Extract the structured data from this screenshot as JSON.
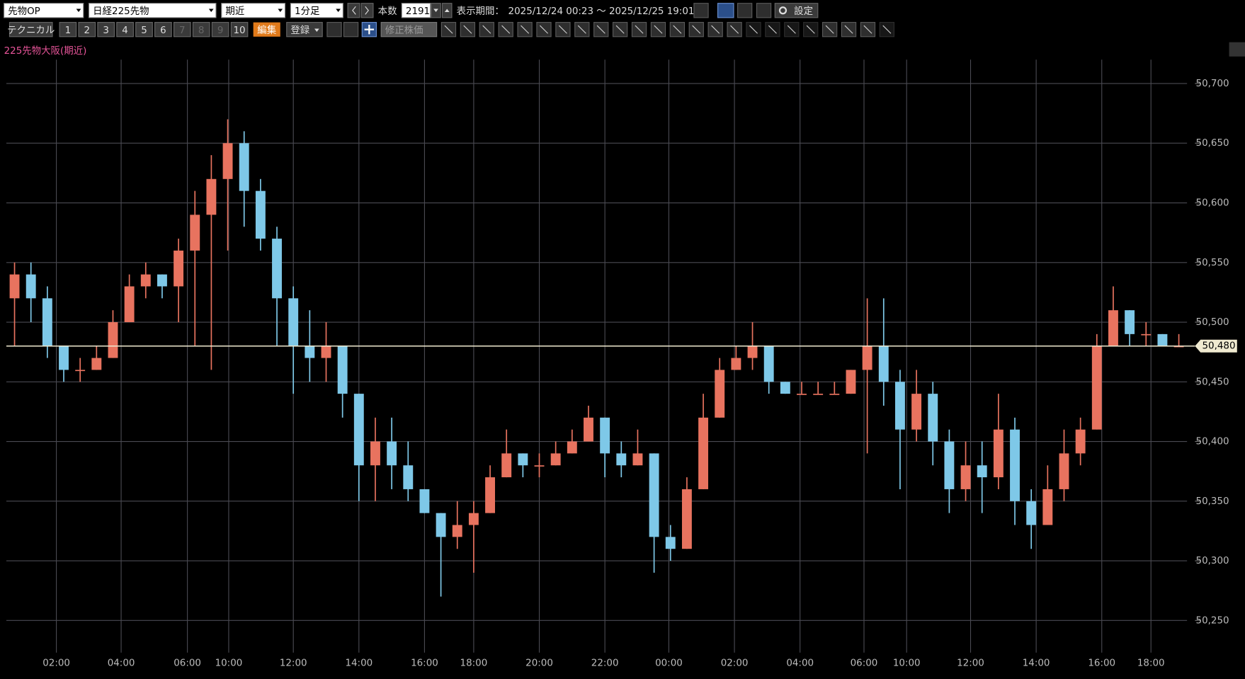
{
  "toolbar": {
    "market": "先物OP",
    "symbol": "日経225先物",
    "contract": "期近",
    "interval": "1分足",
    "bars_label": "本数",
    "bars": 2191,
    "period_label": "表示期間：",
    "period": "2025/12/24 00:23 ～ 2025/12/25 19:01",
    "settings": "設定",
    "technical": "テクニカル",
    "presets": [
      1,
      2,
      3,
      4,
      5,
      6,
      7,
      8,
      9,
      10
    ],
    "edit": "編集",
    "register": "登録",
    "adjusted": "修正株価"
  },
  "chart_data": {
    "type": "candlestick",
    "title": "225先物大阪(期近)",
    "open": [
      50520,
      50540,
      50520,
      50480,
      50460,
      50460,
      50470,
      50500,
      50530,
      50540,
      50530,
      50560,
      50590,
      50620,
      50650,
      50610,
      50570,
      50520,
      50480,
      50470,
      50480,
      50440,
      50380,
      50400,
      50380,
      50360,
      50340,
      50320,
      50330,
      50340,
      50370,
      50390,
      50380,
      50380,
      50390,
      50400,
      50420,
      50390,
      50380,
      50390,
      50320,
      50310,
      50360,
      50420,
      50460,
      50470,
      50480,
      50450,
      50440,
      50440,
      50440,
      50440,
      50460,
      50480,
      50450,
      50410,
      50440,
      50400,
      50360,
      50380,
      50370,
      50410,
      50350,
      50330,
      50360,
      50390,
      50410,
      50480,
      50510,
      50490,
      50490,
      50480
    ],
    "high": [
      50550,
      50550,
      50530,
      50480,
      50470,
      50480,
      50510,
      50540,
      50550,
      50540,
      50570,
      50610,
      50640,
      50670,
      50660,
      50620,
      50580,
      50530,
      50510,
      50500,
      50480,
      50440,
      50420,
      50420,
      50400,
      50360,
      50340,
      50350,
      50350,
      50380,
      50410,
      50390,
      50390,
      50400,
      50410,
      50430,
      50420,
      50400,
      50410,
      50390,
      50330,
      50370,
      50440,
      50470,
      50480,
      50500,
      50480,
      50450,
      50450,
      50450,
      50450,
      50460,
      50520,
      50520,
      50460,
      50460,
      50450,
      50410,
      50400,
      50400,
      50440,
      50420,
      50360,
      50380,
      50410,
      50420,
      50490,
      50530,
      50510,
      50500,
      50490,
      50490
    ],
    "low": [
      50480,
      50500,
      50470,
      50450,
      50450,
      50460,
      50470,
      50500,
      50520,
      50520,
      50500,
      50480,
      50460,
      50560,
      50580,
      50560,
      50480,
      50440,
      50450,
      50450,
      50420,
      50350,
      50350,
      50360,
      50350,
      50340,
      50270,
      50310,
      50290,
      50340,
      50370,
      50370,
      50370,
      50380,
      50390,
      50400,
      50370,
      50370,
      50380,
      50290,
      50300,
      50310,
      50360,
      50420,
      50460,
      50460,
      50440,
      50440,
      50440,
      50440,
      50440,
      50440,
      50390,
      50430,
      50360,
      50400,
      50380,
      50340,
      50350,
      50340,
      50360,
      50330,
      50310,
      50330,
      50350,
      50380,
      50410,
      50480,
      50480,
      50480,
      50480,
      50480
    ],
    "close": [
      50540,
      50520,
      50480,
      50460,
      50460,
      50470,
      50500,
      50530,
      50540,
      50530,
      50560,
      50590,
      50620,
      50650,
      50610,
      50570,
      50520,
      50480,
      50470,
      50480,
      50440,
      50380,
      50400,
      50380,
      50360,
      50340,
      50320,
      50330,
      50340,
      50370,
      50390,
      50380,
      50380,
      50390,
      50400,
      50420,
      50390,
      50380,
      50390,
      50320,
      50310,
      50360,
      50420,
      50460,
      50470,
      50480,
      50450,
      50440,
      50440,
      50440,
      50440,
      50460,
      50480,
      50450,
      50410,
      50440,
      50400,
      50360,
      50380,
      50370,
      50410,
      50350,
      50330,
      50360,
      50390,
      50410,
      50480,
      50510,
      50490,
      50490,
      50480,
      50480
    ],
    "up_color": "#e8735f",
    "down_color": "#7ec8e8",
    "title_color": "#e8559a",
    "ylim": [
      50223,
      50720
    ],
    "yticks": [
      {
        "value": 50250,
        "label": "50,250"
      },
      {
        "value": 50300,
        "label": "50,300"
      },
      {
        "value": 50350,
        "label": "50,350"
      },
      {
        "value": 50400,
        "label": "50,400"
      },
      {
        "value": 50450,
        "label": "50,450"
      },
      {
        "value": 50500,
        "label": "50,500"
      },
      {
        "value": 50550,
        "label": "50,550"
      },
      {
        "value": 50600,
        "label": "50,600"
      },
      {
        "value": 50650,
        "label": "50,650"
      },
      {
        "value": 50700,
        "label": "50,700"
      }
    ],
    "xlim": [
      0,
      72
    ],
    "xticks": [
      {
        "value": 3.05,
        "label": "02:00"
      },
      {
        "value": 7.0,
        "label": "04:00"
      },
      {
        "value": 11.04,
        "label": "06:00"
      },
      {
        "value": 13.56,
        "label": "10:00"
      },
      {
        "value": 17.5,
        "label": "12:00"
      },
      {
        "value": 21.5,
        "label": "14:00"
      },
      {
        "value": 25.5,
        "label": "16:00"
      },
      {
        "value": 28.5,
        "label": "18:00"
      },
      {
        "value": 32.5,
        "label": "20:00"
      },
      {
        "value": 36.5,
        "label": "22:00"
      },
      {
        "value": 40.4,
        "label": "00:00"
      },
      {
        "value": 44.4,
        "label": "02:00"
      },
      {
        "value": 48.4,
        "label": "04:00"
      },
      {
        "value": 52.3,
        "label": "06:00"
      },
      {
        "value": 54.9,
        "label": "10:00"
      },
      {
        "value": 58.8,
        "label": "12:00"
      },
      {
        "value": 62.8,
        "label": "14:00"
      },
      {
        "value": 66.8,
        "label": "16:00"
      },
      {
        "value": 69.8,
        "label": "18:00"
      }
    ],
    "last_price": {
      "value": 50480,
      "label": "50,480"
    },
    "grid": true
  }
}
